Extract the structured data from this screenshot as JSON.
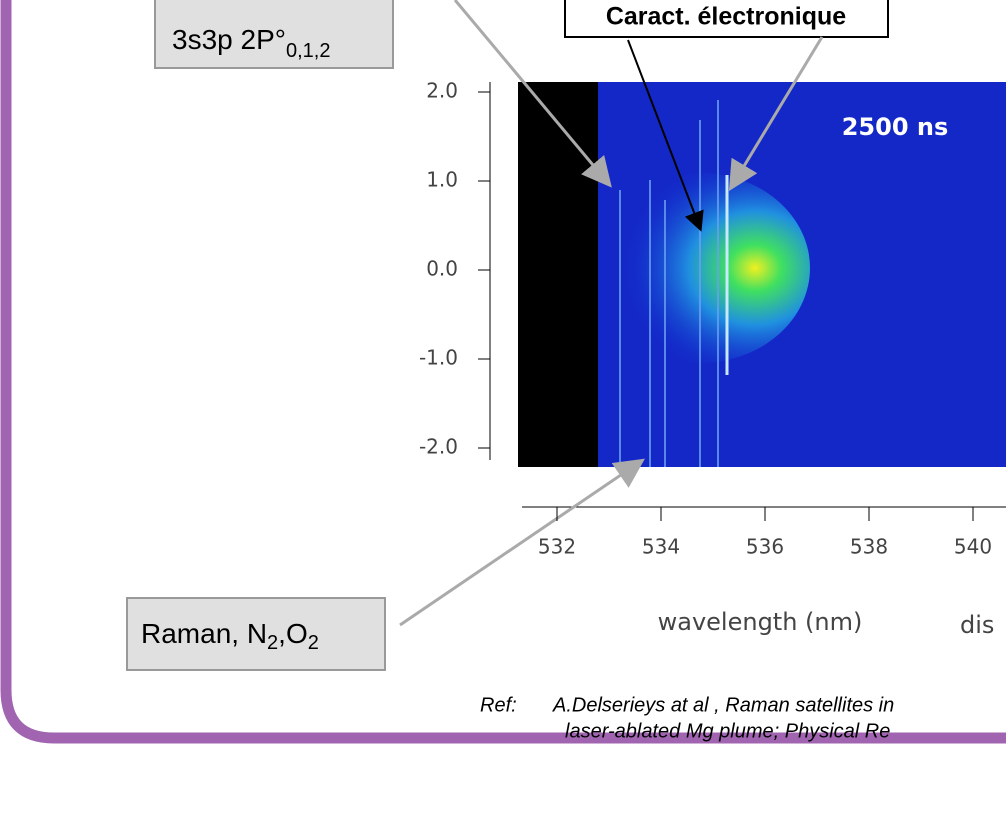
{
  "level_label": {
    "text": "3s3p 2P°",
    "subscript": "0,1,2"
  },
  "feature_label": "Caract. électronique",
  "raman_label": {
    "parts": [
      "Raman, N",
      "2",
      ",O",
      "2"
    ]
  },
  "plot": {
    "time_label": "2500 ns",
    "yticks": [
      {
        "value": 2,
        "label": "2.0"
      },
      {
        "value": 1,
        "label": "1.0"
      },
      {
        "value": 0,
        "label": "0.0"
      },
      {
        "value": -1,
        "label": "-1.0"
      },
      {
        "value": -2,
        "label": "-2.0"
      }
    ],
    "xticks": [
      532,
      534,
      536,
      538,
      540
    ],
    "xlabel": "wavelength (nm)",
    "side_label": "dis"
  },
  "reference": {
    "prefix": "Ref:",
    "lines": [
      "A.Delserieys at al , Raman satellites in",
      "laser-ablated Mg plume;  Physical Re"
    ]
  }
}
